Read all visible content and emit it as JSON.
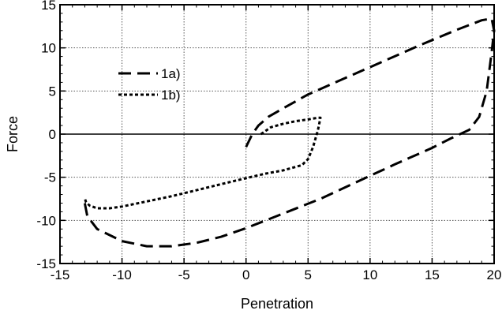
{
  "chart_data": {
    "type": "line",
    "xlabel": "Penetration",
    "ylabel": "Force",
    "xlim": [
      -15,
      20
    ],
    "ylim": [
      -15,
      15
    ],
    "xticks": [
      -15,
      -10,
      -5,
      0,
      5,
      10,
      15,
      20
    ],
    "yticks": [
      -15,
      -10,
      -5,
      0,
      5,
      10,
      15
    ],
    "grid": true,
    "legend_position": "upper-left",
    "series": [
      {
        "name": "1a)",
        "dash": "dashed",
        "x": [
          0,
          0.5,
          1.0,
          1.8,
          3.0,
          5.0,
          8.0,
          11.0,
          14.0,
          17.0,
          19.0,
          19.8,
          20.0,
          19.8,
          19.4,
          18.8,
          18.0,
          16.5,
          15.0,
          12.0,
          9.0,
          6.0,
          3.0,
          0.0,
          -2.0,
          -4.0,
          -6.0,
          -8.0,
          -10.0,
          -12.0,
          -12.8,
          -13.0
        ],
        "y": [
          -1.5,
          0.0,
          1.0,
          2.0,
          3.0,
          4.6,
          6.5,
          8.4,
          10.3,
          12.1,
          13.2,
          13.4,
          12.0,
          9.5,
          5.0,
          2.0,
          0.5,
          -0.5,
          -1.6,
          -3.5,
          -5.5,
          -7.5,
          -9.2,
          -10.9,
          -11.9,
          -12.6,
          -13.0,
          -13.0,
          -12.4,
          -11.0,
          -9.5,
          -8.0
        ]
      },
      {
        "name": "1b)",
        "dash": "dotted",
        "x": [
          1.2,
          2.0,
          3.0,
          4.0,
          5.0,
          5.8,
          6.0,
          5.8,
          5.4,
          5.0,
          4.5,
          4.0,
          3.0,
          1.5,
          0.0,
          -2.0,
          -4.0,
          -6.0,
          -8.0,
          -10.0,
          -11.0,
          -12.0,
          -12.6,
          -12.9,
          -13.0
        ],
        "y": [
          0.0,
          0.8,
          1.2,
          1.5,
          1.7,
          1.9,
          1.9,
          0.5,
          -1.5,
          -2.9,
          -3.6,
          -3.8,
          -4.2,
          -4.6,
          -5.1,
          -5.8,
          -6.5,
          -7.2,
          -7.8,
          -8.4,
          -8.6,
          -8.6,
          -8.3,
          -7.9,
          -7.4
        ]
      }
    ]
  }
}
